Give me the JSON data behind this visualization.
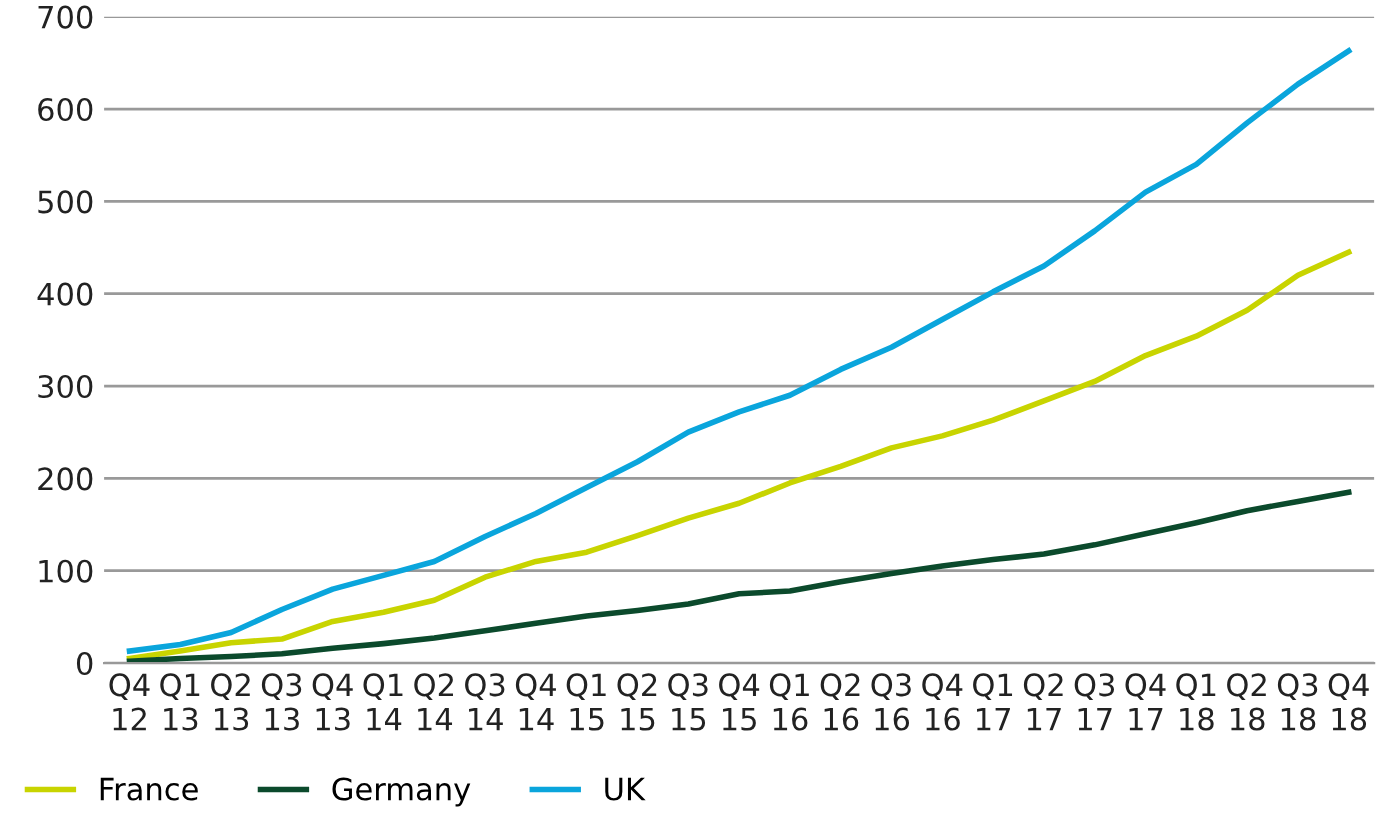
{
  "chart_data": {
    "type": "line",
    "categories": [
      "Q4\n12",
      "Q1\n13",
      "Q2\n13",
      "Q3\n13",
      "Q4\n13",
      "Q1\n14",
      "Q2\n14",
      "Q3\n14",
      "Q4\n14",
      "Q1\n15",
      "Q2\n15",
      "Q3\n15",
      "Q4\n15",
      "Q1\n16",
      "Q2\n16",
      "Q3\n16",
      "Q4\n16",
      "Q1\n17",
      "Q2\n17",
      "Q3\n17",
      "Q4\n17",
      "Q1\n18",
      "Q2\n18",
      "Q3\n18",
      "Q4\n18"
    ],
    "series": [
      {
        "name": "France",
        "color": "#c8d400",
        "values": [
          5,
          13,
          22,
          26,
          45,
          55,
          68,
          93,
          110,
          120,
          138,
          157,
          173,
          195,
          213,
          233,
          246,
          263,
          284,
          305,
          333,
          354,
          382,
          420,
          445
        ]
      },
      {
        "name": "Germany",
        "color": "#0b4a2c",
        "values": [
          2,
          5,
          7,
          10,
          16,
          21,
          27,
          35,
          43,
          51,
          57,
          64,
          75,
          78,
          88,
          97,
          105,
          112,
          118,
          128,
          140,
          152,
          165,
          175,
          185
        ]
      },
      {
        "name": "UK",
        "color": "#0aa5dc",
        "values": [
          13,
          20,
          33,
          58,
          80,
          95,
          110,
          137,
          162,
          190,
          218,
          250,
          272,
          290,
          318,
          342,
          372,
          402,
          430,
          468,
          510,
          540,
          585,
          627,
          663
        ]
      }
    ],
    "ylim": [
      0,
      700
    ],
    "yticks": [
      0,
      100,
      200,
      300,
      400,
      500,
      600,
      700
    ],
    "grid": "y",
    "legend": "bottom left",
    "marker": "none",
    "line_style": "solid"
  }
}
